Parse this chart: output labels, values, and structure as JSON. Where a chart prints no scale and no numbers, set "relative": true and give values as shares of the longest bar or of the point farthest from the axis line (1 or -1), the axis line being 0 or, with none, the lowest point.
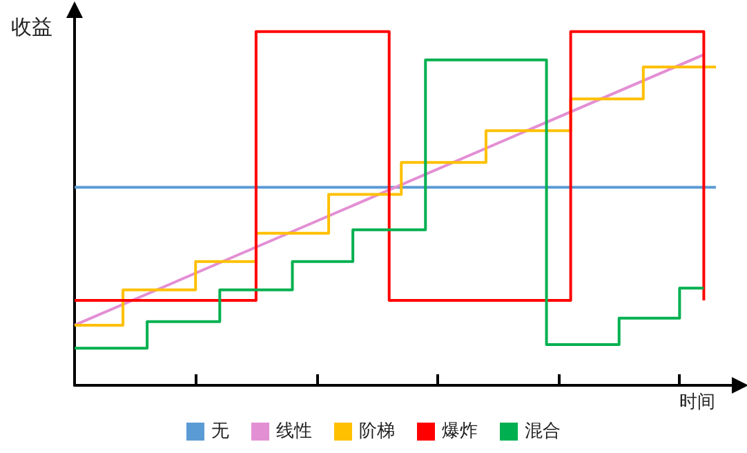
{
  "chart_data": {
    "type": "line",
    "relative": true,
    "ylabel": "收益",
    "xlabel": "时间",
    "categories": [
      null,
      null,
      null,
      null,
      null,
      null,
      null,
      null,
      null,
      null,
      null,
      null,
      null,
      null,
      null,
      null,
      null,
      null,
      null,
      null,
      null,
      null,
      null,
      null,
      null,
      null,
      null,
      null,
      null,
      null,
      null,
      null,
      null,
      null,
      null,
      null,
      null,
      null,
      null,
      null,
      null,
      null,
      null,
      null,
      null,
      null,
      null,
      null,
      null,
      null,
      null,
      null,
      null,
      null,
      null,
      null
    ],
    "grid": false,
    "legend": "bottom",
    "marker": "none",
    "line_style": "solid",
    "series": [
      {
        "name": "无",
        "color": "#5b9bd5",
        "values": [
          0.56,
          null,
          null,
          null,
          null,
          null,
          null,
          null,
          null,
          null,
          null,
          null,
          null,
          null,
          null,
          null,
          null,
          null,
          null,
          null,
          null,
          null,
          null,
          null,
          null,
          null,
          null,
          null,
          null,
          null,
          null,
          null,
          null,
          null,
          null,
          null,
          null,
          null,
          null,
          null,
          null,
          null,
          null,
          null,
          null,
          null,
          null,
          null,
          null,
          null,
          null,
          null,
          null,
          0.56,
          null,
          null
        ]
      },
      {
        "name": "线性",
        "color": "#e38fd4",
        "values": [
          0.17,
          null,
          null,
          null,
          null,
          null,
          null,
          null,
          null,
          null,
          null,
          null,
          null,
          null,
          null,
          null,
          null,
          null,
          null,
          null,
          null,
          null,
          null,
          null,
          null,
          null,
          null,
          null,
          null,
          null,
          null,
          null,
          null,
          null,
          null,
          null,
          null,
          null,
          null,
          null,
          null,
          null,
          null,
          null,
          null,
          null,
          null,
          null,
          null,
          null,
          null,
          null,
          0.935,
          null,
          null,
          null
        ]
      },
      {
        "name": "阶梯",
        "type": "step",
        "color": "#ffc000",
        "values": [
          0.17,
          null,
          null,
          null,
          0.27,
          null,
          null,
          null,
          null,
          null,
          0.35,
          null,
          null,
          null,
          null,
          0.43,
          null,
          null,
          null,
          null,
          null,
          0.54,
          null,
          null,
          null,
          null,
          null,
          0.63,
          null,
          null,
          null,
          null,
          null,
          null,
          0.72,
          null,
          null,
          null,
          null,
          null,
          null,
          0.81,
          null,
          null,
          null,
          null,
          null,
          0.9,
          null,
          null,
          null,
          null,
          null,
          0.9,
          null,
          null
        ]
      },
      {
        "name": "爆炸",
        "type": "step",
        "color": "#ff0000",
        "values": [
          0.24,
          null,
          null,
          null,
          null,
          null,
          null,
          null,
          null,
          null,
          null,
          null,
          null,
          null,
          null,
          1,
          null,
          null,
          null,
          null,
          null,
          null,
          null,
          null,
          null,
          null,
          0.24,
          null,
          null,
          null,
          null,
          null,
          null,
          null,
          null,
          null,
          null,
          null,
          null,
          null,
          null,
          1,
          null,
          null,
          null,
          null,
          null,
          null,
          null,
          null,
          null,
          null,
          0.24,
          null,
          null,
          null
        ]
      },
      {
        "name": "混合",
        "type": "step",
        "color": "#00b050",
        "values": [
          0.105,
          null,
          null,
          null,
          null,
          null,
          0.18,
          null,
          null,
          null,
          null,
          null,
          0.27,
          null,
          null,
          null,
          null,
          null,
          0.35,
          null,
          null,
          null,
          null,
          0.44,
          null,
          null,
          null,
          null,
          null,
          0.92,
          null,
          null,
          null,
          null,
          null,
          null,
          null,
          null,
          null,
          0.115,
          null,
          null,
          null,
          null,
          null,
          0.19,
          null,
          null,
          null,
          null,
          0.275,
          null,
          0.275,
          null,
          null,
          null
        ]
      }
    ]
  }
}
